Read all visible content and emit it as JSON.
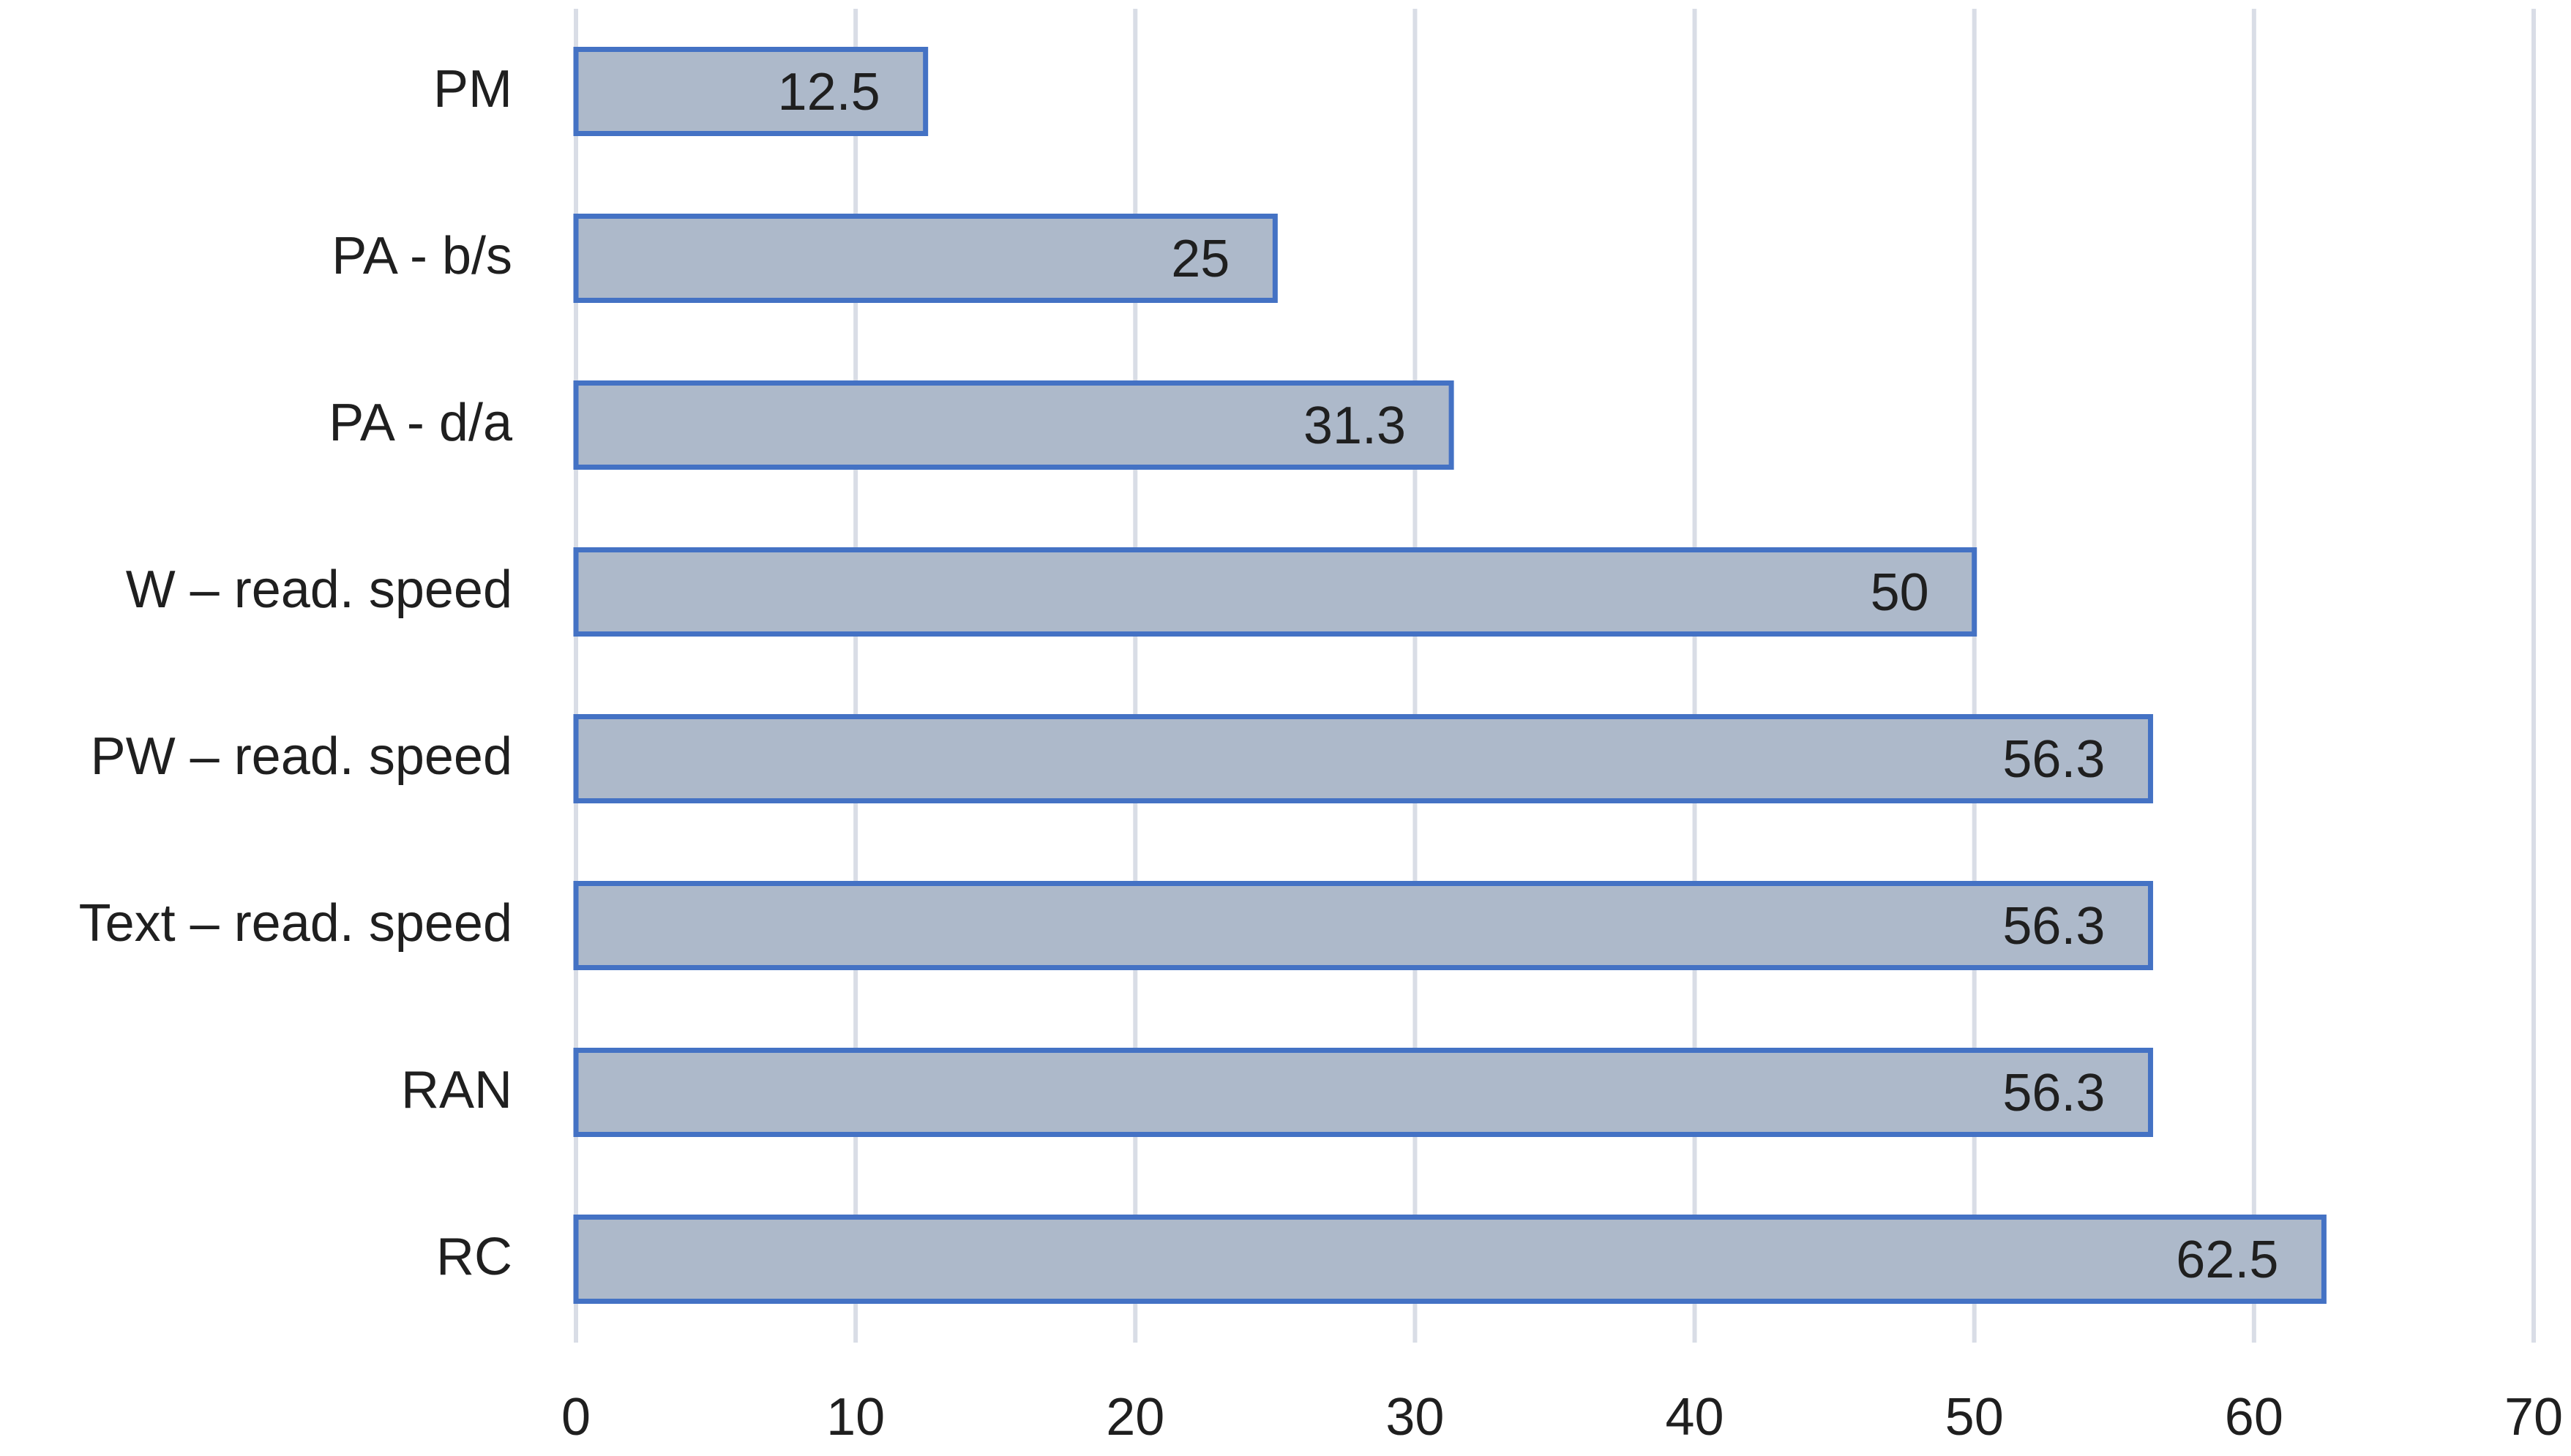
{
  "chart_data": {
    "type": "bar",
    "orientation": "horizontal",
    "title": "",
    "xlabel": "",
    "ylabel": "",
    "categories": [
      "PM",
      "PA - b/s",
      "PA - d/a",
      "W – read. speed",
      "PW – read. speed",
      "Text – read. speed",
      "RAN",
      "RC"
    ],
    "values": [
      12.5,
      25,
      31.3,
      50,
      56.3,
      56.3,
      56.3,
      62.5
    ],
    "data_labels": [
      "12.5",
      "25",
      "31.3",
      "50",
      "56.3",
      "56.3",
      "56.3",
      "62.5"
    ],
    "xlim": [
      0,
      70
    ],
    "x_ticks": [
      0,
      10,
      20,
      30,
      40,
      50,
      60,
      70
    ],
    "x_tick_labels": [
      "0",
      "10",
      "20",
      "30",
      "40",
      "50",
      "60",
      "70"
    ],
    "grid": true,
    "legend": "none",
    "colors": {
      "bar_fill": "#adb9ca",
      "bar_border": "#4472c4",
      "gridline": "#d9dde6",
      "text": "#1f1f1f"
    }
  }
}
